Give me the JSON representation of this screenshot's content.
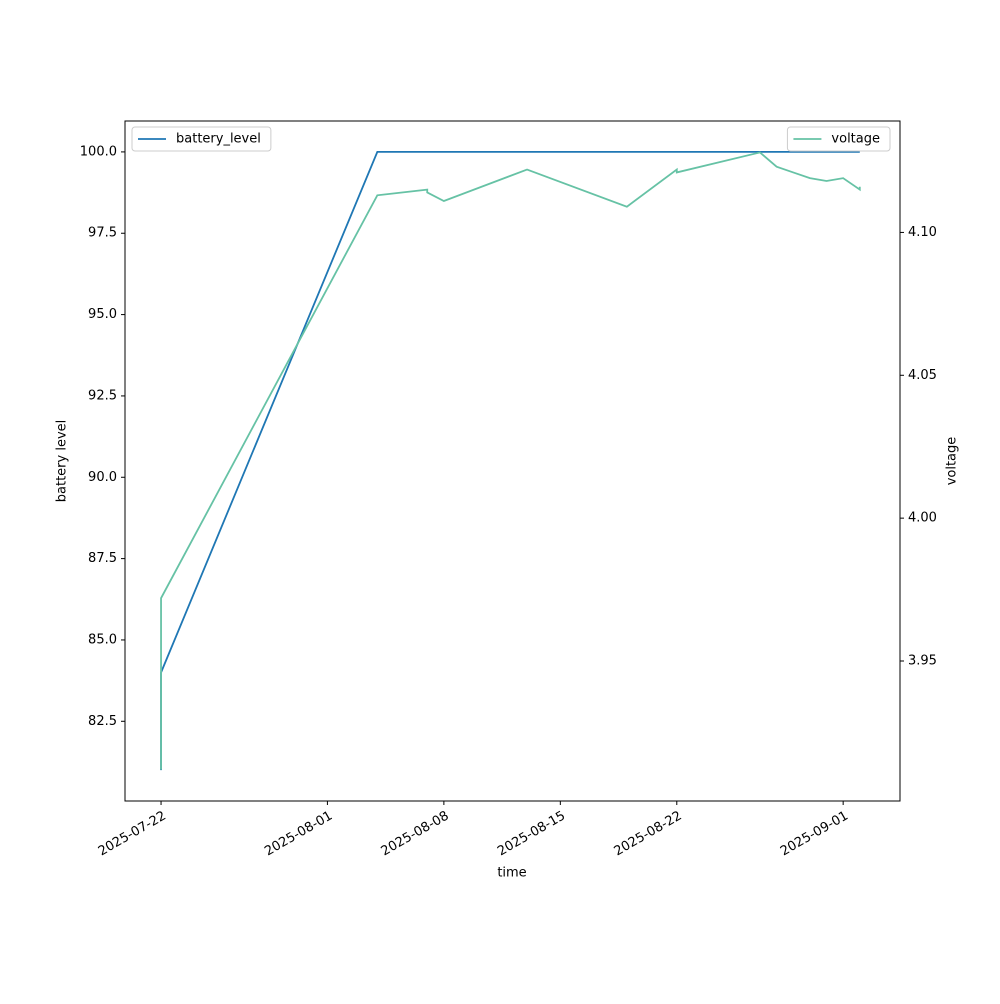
{
  "chart_data": {
    "type": "line",
    "x_label": "time",
    "y_label": "battery level",
    "y2_label": "voltage",
    "xlim": [
      "2025-07-19T20:00",
      "2025-09-04T10:00"
    ],
    "xticks": [
      "2025-07-22",
      "2025-08-01",
      "2025-08-08",
      "2025-08-15",
      "2025-08-22",
      "2025-09-01"
    ],
    "ylim": [
      80.05,
      100.95
    ],
    "yticks": [
      82.5,
      {
        "value": 85,
        "label": "85.0"
      },
      87.5,
      {
        "value": 90,
        "label": "90.0"
      },
      92.5,
      {
        "value": 95,
        "label": "95.0"
      },
      97.5,
      {
        "value": 100,
        "label": "100.0"
      }
    ],
    "y2lim": [
      3.901,
      4.139
    ],
    "y2ticks": [
      3.95,
      {
        "value": 4.0,
        "label": "4.00"
      },
      {
        "value": 4.05,
        "label": "4.05"
      },
      {
        "value": 4.1,
        "label": "4.10"
      }
    ],
    "grid": false,
    "series": [
      {
        "name": "battery_level",
        "color": "#1f77b4",
        "legend": "upper left",
        "x": [
          "2025-07-22",
          "2025-07-22",
          "2025-07-22",
          "2025-08-04",
          "2025-09-02"
        ],
        "values": [
          82,
          81,
          84,
          100,
          100
        ]
      },
      {
        "name": "voltage",
        "color": "#66c2a5",
        "axis": "y2",
        "legend": "upper right",
        "x": [
          "2025-07-22",
          "2025-07-22",
          "2025-08-04",
          "2025-08-04",
          "2025-08-07",
          "2025-08-07",
          "2025-08-08",
          "2025-08-13",
          "2025-08-19",
          "2025-08-22",
          "2025-08-22",
          "2025-08-27",
          "2025-08-28",
          "2025-08-29",
          "2025-08-30",
          "2025-08-31",
          "2025-09-01",
          "2025-09-02",
          "2025-09-02"
        ],
        "values": [
          3.912,
          3.972,
          4.113,
          4.113,
          4.115,
          4.114,
          4.111,
          4.122,
          4.109,
          4.122,
          4.121,
          4.128,
          4.123,
          4.121,
          4.119,
          4.118,
          4.119,
          4.115,
          4.116
        ]
      }
    ]
  }
}
